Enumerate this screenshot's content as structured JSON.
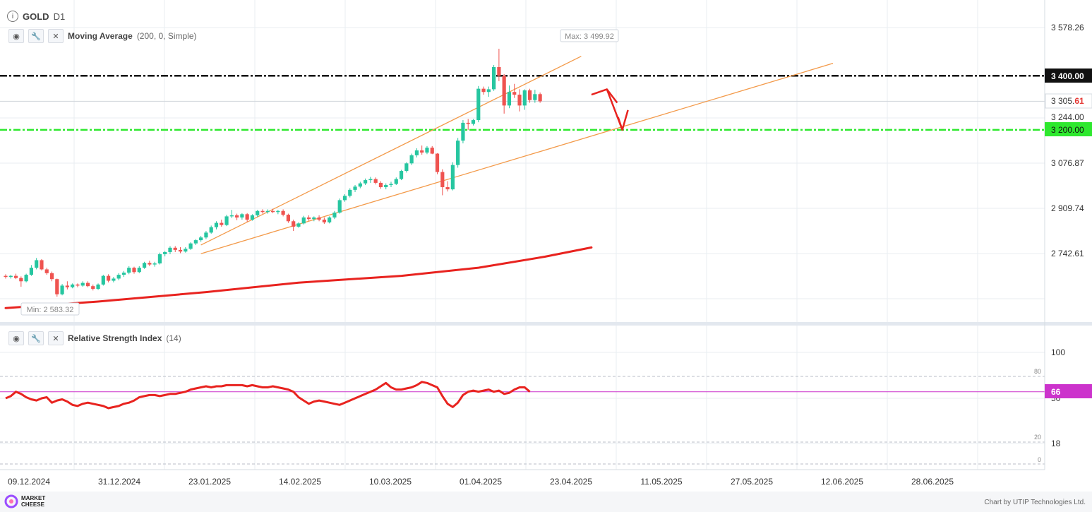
{
  "header": {
    "symbol": "GOLD",
    "timeframe": "D1",
    "info_icon": "info-circle-icon"
  },
  "indicators": {
    "ma": {
      "name": "Moving Average",
      "params": "(200, 0, Simple)",
      "eye_icon": "eye-icon",
      "settings_icon": "wrench-icon",
      "close_icon": "close-icon"
    },
    "rsi": {
      "name": "Relative Strength Index",
      "params": "(14)",
      "eye_icon": "eye-icon",
      "settings_icon": "wrench-icon",
      "close_icon": "close-icon"
    }
  },
  "annotations": {
    "max_label": "Max: 3 499.92",
    "min_label": "Min: 2 583.32"
  },
  "price_axis": {
    "ticks": [
      "3 578.26",
      "3 244.00",
      "3 076.87",
      "2 909.74",
      "2 742.61"
    ],
    "current_price_main": "3 305.",
    "current_price_tail": "61",
    "level_high": "3 400.00",
    "level_low": "3 200.00"
  },
  "rsi_axis": {
    "ticks": [
      "100",
      "18"
    ],
    "small_ticks": [
      "80",
      "20",
      "0"
    ],
    "hidden_tick": "50",
    "current": "66"
  },
  "time_axis": [
    "09.12.2024",
    "31.12.2024",
    "23.01.2025",
    "14.02.2025",
    "10.03.2025",
    "01.04.2025",
    "23.04.2025",
    "11.05.2025",
    "27.05.2025",
    "12.06.2025",
    "28.06.2025"
  ],
  "footer": {
    "logo_text_1": "MARKET",
    "logo_text_2": "CHEESE",
    "credit": "Chart by UTIP Technologies Ltd."
  },
  "colors": {
    "bull": "#26c6a0",
    "bear": "#ef5350",
    "level_high": "#000000",
    "level_low": "#2ee82e",
    "ma_line": "#e8231f",
    "trend_line": "#f39a4a",
    "rsi_line": "#e8231f",
    "rsi_current_line": "#cc33cc",
    "arrow": "#e8231f",
    "grid": "#e9edf2"
  },
  "chart_data": [
    {
      "type": "candlestick",
      "symbol": "GOLD",
      "timeframe": "D1",
      "y_range": [
        2583,
        3578
      ],
      "candles": [
        {
          "o": 2660,
          "h": 2666,
          "l": 2650,
          "c": 2656
        },
        {
          "o": 2656,
          "h": 2664,
          "l": 2650,
          "c": 2660
        },
        {
          "o": 2660,
          "h": 2668,
          "l": 2648,
          "c": 2652
        },
        {
          "o": 2652,
          "h": 2658,
          "l": 2620,
          "c": 2640
        },
        {
          "o": 2640,
          "h": 2668,
          "l": 2636,
          "c": 2664
        },
        {
          "o": 2664,
          "h": 2700,
          "l": 2660,
          "c": 2690
        },
        {
          "o": 2690,
          "h": 2726,
          "l": 2684,
          "c": 2718
        },
        {
          "o": 2718,
          "h": 2722,
          "l": 2680,
          "c": 2684
        },
        {
          "o": 2684,
          "h": 2690,
          "l": 2664,
          "c": 2670
        },
        {
          "o": 2670,
          "h": 2676,
          "l": 2640,
          "c": 2648
        },
        {
          "o": 2648,
          "h": 2650,
          "l": 2583,
          "c": 2592
        },
        {
          "o": 2592,
          "h": 2630,
          "l": 2588,
          "c": 2624
        },
        {
          "o": 2624,
          "h": 2640,
          "l": 2610,
          "c": 2618
        },
        {
          "o": 2618,
          "h": 2632,
          "l": 2614,
          "c": 2628
        },
        {
          "o": 2628,
          "h": 2632,
          "l": 2618,
          "c": 2624
        },
        {
          "o": 2624,
          "h": 2640,
          "l": 2620,
          "c": 2634
        },
        {
          "o": 2634,
          "h": 2640,
          "l": 2618,
          "c": 2622
        },
        {
          "o": 2622,
          "h": 2628,
          "l": 2606,
          "c": 2612
        },
        {
          "o": 2612,
          "h": 2632,
          "l": 2608,
          "c": 2628
        },
        {
          "o": 2628,
          "h": 2664,
          "l": 2624,
          "c": 2660
        },
        {
          "o": 2660,
          "h": 2666,
          "l": 2636,
          "c": 2642
        },
        {
          "o": 2642,
          "h": 2656,
          "l": 2636,
          "c": 2650
        },
        {
          "o": 2650,
          "h": 2670,
          "l": 2644,
          "c": 2664
        },
        {
          "o": 2664,
          "h": 2678,
          "l": 2656,
          "c": 2672
        },
        {
          "o": 2672,
          "h": 2696,
          "l": 2666,
          "c": 2690
        },
        {
          "o": 2690,
          "h": 2694,
          "l": 2668,
          "c": 2674
        },
        {
          "o": 2674,
          "h": 2696,
          "l": 2670,
          "c": 2690
        },
        {
          "o": 2690,
          "h": 2712,
          "l": 2686,
          "c": 2708
        },
        {
          "o": 2708,
          "h": 2716,
          "l": 2696,
          "c": 2702
        },
        {
          "o": 2702,
          "h": 2712,
          "l": 2694,
          "c": 2706
        },
        {
          "o": 2706,
          "h": 2746,
          "l": 2702,
          "c": 2740
        },
        {
          "o": 2740,
          "h": 2752,
          "l": 2732,
          "c": 2748
        },
        {
          "o": 2748,
          "h": 2770,
          "l": 2740,
          "c": 2764
        },
        {
          "o": 2764,
          "h": 2770,
          "l": 2748,
          "c": 2756
        },
        {
          "o": 2756,
          "h": 2766,
          "l": 2744,
          "c": 2750
        },
        {
          "o": 2750,
          "h": 2766,
          "l": 2746,
          "c": 2760
        },
        {
          "o": 2760,
          "h": 2784,
          "l": 2756,
          "c": 2780
        },
        {
          "o": 2780,
          "h": 2796,
          "l": 2774,
          "c": 2792
        },
        {
          "o": 2792,
          "h": 2808,
          "l": 2786,
          "c": 2802
        },
        {
          "o": 2802,
          "h": 2826,
          "l": 2796,
          "c": 2820
        },
        {
          "o": 2820,
          "h": 2846,
          "l": 2816,
          "c": 2840
        },
        {
          "o": 2840,
          "h": 2862,
          "l": 2832,
          "c": 2856
        },
        {
          "o": 2856,
          "h": 2868,
          "l": 2842,
          "c": 2848
        },
        {
          "o": 2848,
          "h": 2886,
          "l": 2844,
          "c": 2880
        },
        {
          "o": 2880,
          "h": 2904,
          "l": 2874,
          "c": 2884
        },
        {
          "o": 2884,
          "h": 2890,
          "l": 2866,
          "c": 2876
        },
        {
          "o": 2876,
          "h": 2892,
          "l": 2868,
          "c": 2888
        },
        {
          "o": 2888,
          "h": 2892,
          "l": 2860,
          "c": 2868
        },
        {
          "o": 2868,
          "h": 2888,
          "l": 2864,
          "c": 2884
        },
        {
          "o": 2884,
          "h": 2904,
          "l": 2878,
          "c": 2900
        },
        {
          "o": 2900,
          "h": 2906,
          "l": 2890,
          "c": 2896
        },
        {
          "o": 2896,
          "h": 2906,
          "l": 2890,
          "c": 2900
        },
        {
          "o": 2900,
          "h": 2908,
          "l": 2892,
          "c": 2896
        },
        {
          "o": 2896,
          "h": 2904,
          "l": 2888,
          "c": 2900
        },
        {
          "o": 2900,
          "h": 2906,
          "l": 2880,
          "c": 2886
        },
        {
          "o": 2886,
          "h": 2890,
          "l": 2856,
          "c": 2862
        },
        {
          "o": 2862,
          "h": 2868,
          "l": 2826,
          "c": 2842
        },
        {
          "o": 2842,
          "h": 2858,
          "l": 2838,
          "c": 2854
        },
        {
          "o": 2854,
          "h": 2882,
          "l": 2850,
          "c": 2876
        },
        {
          "o": 2876,
          "h": 2884,
          "l": 2864,
          "c": 2870
        },
        {
          "o": 2870,
          "h": 2880,
          "l": 2862,
          "c": 2876
        },
        {
          "o": 2876,
          "h": 2884,
          "l": 2862,
          "c": 2868
        },
        {
          "o": 2868,
          "h": 2876,
          "l": 2852,
          "c": 2858
        },
        {
          "o": 2858,
          "h": 2880,
          "l": 2854,
          "c": 2876
        },
        {
          "o": 2876,
          "h": 2900,
          "l": 2870,
          "c": 2894
        },
        {
          "o": 2894,
          "h": 2946,
          "l": 2890,
          "c": 2940
        },
        {
          "o": 2940,
          "h": 2962,
          "l": 2934,
          "c": 2956
        },
        {
          "o": 2956,
          "h": 2984,
          "l": 2950,
          "c": 2978
        },
        {
          "o": 2978,
          "h": 2996,
          "l": 2970,
          "c": 2990
        },
        {
          "o": 2990,
          "h": 3008,
          "l": 2984,
          "c": 3002
        },
        {
          "o": 3002,
          "h": 3020,
          "l": 2996,
          "c": 3014
        },
        {
          "o": 3014,
          "h": 3026,
          "l": 3004,
          "c": 3018
        },
        {
          "o": 3018,
          "h": 3024,
          "l": 2998,
          "c": 3004
        },
        {
          "o": 3004,
          "h": 3010,
          "l": 2982,
          "c": 2988
        },
        {
          "o": 2988,
          "h": 3002,
          "l": 2980,
          "c": 2996
        },
        {
          "o": 2996,
          "h": 3008,
          "l": 2988,
          "c": 3000
        },
        {
          "o": 3000,
          "h": 3024,
          "l": 2996,
          "c": 3018
        },
        {
          "o": 3018,
          "h": 3052,
          "l": 3014,
          "c": 3048
        },
        {
          "o": 3048,
          "h": 3080,
          "l": 3042,
          "c": 3076
        },
        {
          "o": 3076,
          "h": 3112,
          "l": 3070,
          "c": 3106
        },
        {
          "o": 3106,
          "h": 3132,
          "l": 3098,
          "c": 3124
        },
        {
          "o": 3124,
          "h": 3142,
          "l": 3108,
          "c": 3116
        },
        {
          "o": 3116,
          "h": 3140,
          "l": 3110,
          "c": 3134
        },
        {
          "o": 3134,
          "h": 3140,
          "l": 3110,
          "c": 3112
        },
        {
          "o": 3112,
          "h": 3114,
          "l": 3036,
          "c": 3044
        },
        {
          "o": 3044,
          "h": 3054,
          "l": 2958,
          "c": 2988
        },
        {
          "o": 2988,
          "h": 3010,
          "l": 2972,
          "c": 2980
        },
        {
          "o": 2980,
          "h": 3080,
          "l": 2976,
          "c": 3070
        },
        {
          "o": 3070,
          "h": 3170,
          "l": 3060,
          "c": 3160
        },
        {
          "o": 3160,
          "h": 3236,
          "l": 3150,
          "c": 3226
        },
        {
          "o": 3226,
          "h": 3240,
          "l": 3200,
          "c": 3222
        },
        {
          "o": 3222,
          "h": 3240,
          "l": 3216,
          "c": 3236
        },
        {
          "o": 3236,
          "h": 3362,
          "l": 3228,
          "c": 3352
        },
        {
          "o": 3352,
          "h": 3360,
          "l": 3330,
          "c": 3340
        },
        {
          "o": 3340,
          "h": 3360,
          "l": 3322,
          "c": 3350
        },
        {
          "o": 3350,
          "h": 3440,
          "l": 3344,
          "c": 3432
        },
        {
          "o": 3432,
          "h": 3499.92,
          "l": 3380,
          "c": 3400
        },
        {
          "o": 3400,
          "h": 3406,
          "l": 3260,
          "c": 3290
        },
        {
          "o": 3290,
          "h": 3364,
          "l": 3280,
          "c": 3340
        },
        {
          "o": 3340,
          "h": 3370,
          "l": 3318,
          "c": 3330
        },
        {
          "o": 3330,
          "h": 3350,
          "l": 3268,
          "c": 3290
        },
        {
          "o": 3290,
          "h": 3350,
          "l": 3274,
          "c": 3346
        },
        {
          "o": 3346,
          "h": 3352,
          "l": 3300,
          "c": 3310
        },
        {
          "o": 3310,
          "h": 3348,
          "l": 3300,
          "c": 3332
        },
        {
          "o": 3332,
          "h": 3338,
          "l": 3300,
          "c": 3305.61
        }
      ],
      "moving_average": {
        "period": 200,
        "points": [
          [
            0,
            2541
          ],
          [
            18,
            2565
          ],
          [
            39,
            2600
          ],
          [
            57,
            2635
          ],
          [
            77,
            2660
          ],
          [
            92,
            2690
          ],
          [
            105,
            2731
          ],
          [
            114,
            2765
          ]
        ]
      },
      "horizontal_levels": [
        3400,
        3200
      ],
      "trend_lines": [
        {
          "from": [
            38,
            2774
          ],
          "to": [
            112,
            3472
          ]
        },
        {
          "from": [
            38,
            2742
          ],
          "to": [
            161,
            3446
          ]
        }
      ],
      "forecast_arrow": [
        [
          114,
          3330
        ],
        [
          117,
          3350
        ],
        [
          119,
          3300
        ],
        [
          120,
          3200
        ]
      ]
    },
    {
      "type": "line",
      "name": "Relative Strength Index",
      "y_range": [
        0,
        100
      ],
      "levels": [
        80,
        20
      ],
      "current": 66,
      "values": [
        60,
        62,
        66,
        64,
        61,
        59,
        58,
        60,
        61,
        56,
        58,
        59,
        57,
        54,
        53,
        55,
        56,
        55,
        54,
        53,
        51,
        52,
        53,
        55,
        56,
        58,
        61,
        62,
        63,
        63,
        62,
        63,
        64,
        64,
        65,
        66,
        68,
        69,
        70,
        71,
        70,
        71,
        71,
        72,
        72,
        72,
        72,
        71,
        72,
        71,
        70,
        70,
        71,
        70,
        69,
        68,
        66,
        61,
        58,
        55,
        57,
        58,
        57,
        56,
        55,
        54,
        56,
        58,
        60,
        62,
        64,
        66,
        68,
        71,
        74,
        70,
        68,
        68,
        69,
        70,
        72,
        75,
        74,
        72,
        70,
        62,
        55,
        52,
        56,
        63,
        66,
        67,
        66,
        67,
        68,
        66,
        67,
        64,
        65,
        68,
        70,
        70,
        66
      ]
    }
  ]
}
